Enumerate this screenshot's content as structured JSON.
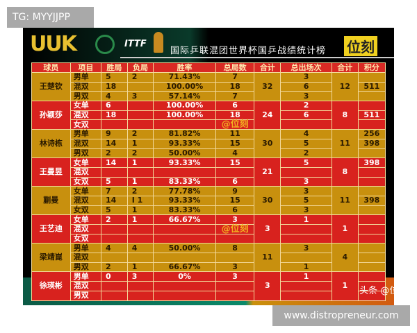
{
  "overlay_tag": "TG: MYYJJPP",
  "site": "www.distropreneur.com",
  "poster": {
    "logo": "UUK",
    "itf": "ITTF",
    "title": "国际乒联混团世界杯国乒战绩统计榜",
    "brand": "位刻",
    "watermark": "@位刻",
    "credit": "头条 @位刻"
  },
  "headers": [
    "球员",
    "项目",
    "胜局",
    "负局",
    "胜率",
    "总局数",
    "合计",
    "总出场次",
    "合计",
    "积分"
  ],
  "colors": {
    "gold": "#c8900e",
    "red": "#d8221e"
  },
  "groups": [
    {
      "name": "王楚钦",
      "total_games": "32",
      "total_apps": "12",
      "color": "gold",
      "rows": [
        [
          "男单",
          "5",
          "2",
          "71.43%",
          "7",
          "3",
          ""
        ],
        [
          "混双",
          "18",
          "",
          "100.00%",
          "18",
          "6",
          "511"
        ],
        [
          "男双",
          "4",
          "3",
          "57.14%",
          "7",
          "3",
          ""
        ]
      ]
    },
    {
      "name": "孙颖莎",
      "total_games": "24",
      "total_apps": "8",
      "color": "red",
      "rows": [
        [
          "女单",
          "6",
          "",
          "100.00%",
          "6",
          "2",
          ""
        ],
        [
          "混双",
          "18",
          "",
          "100.00%",
          "18",
          "6",
          "511"
        ],
        [
          "女双",
          "",
          "",
          "",
          "",
          "",
          ""
        ]
      ]
    },
    {
      "name": "林诗栋",
      "total_games": "30",
      "total_apps": "11",
      "color": "gold",
      "rows": [
        [
          "男单",
          "9",
          "2",
          "81.82%",
          "11",
          "4",
          "256"
        ],
        [
          "混双",
          "14",
          "1",
          "93.33%",
          "15",
          "5",
          "398"
        ],
        [
          "男双",
          "2",
          "2",
          "50.00%",
          "4",
          "2",
          ""
        ]
      ]
    },
    {
      "name": "王曼昱",
      "total_games": "21",
      "total_apps": "8",
      "color": "red",
      "rows": [
        [
          "女单",
          "14",
          "1",
          "93.33%",
          "15",
          "5",
          "398"
        ],
        [
          "混双",
          "",
          "",
          "",
          "",
          "",
          ""
        ],
        [
          "女双",
          "5",
          "1",
          "83.33%",
          "6",
          "3",
          ""
        ]
      ]
    },
    {
      "name": "蒯曼",
      "total_games": "30",
      "total_apps": "11",
      "color": "gold",
      "rows": [
        [
          "女单",
          "7",
          "2",
          "77.78%",
          "9",
          "3",
          ""
        ],
        [
          "混双",
          "14",
          "I 1",
          "93.33%",
          "15",
          "5",
          "398"
        ],
        [
          "女双",
          "5",
          "1",
          "83.33%",
          "6",
          "3",
          ""
        ]
      ]
    },
    {
      "name": "王艺迪",
      "total_games": "3",
      "total_apps": "1",
      "color": "red",
      "rows": [
        [
          "女单",
          "2",
          "1",
          "66.67%",
          "3",
          "1",
          ""
        ],
        [
          "混双",
          "",
          "",
          "",
          "",
          "",
          ""
        ],
        [
          "女双",
          "",
          "",
          "",
          "",
          "",
          ""
        ]
      ]
    },
    {
      "name": "梁靖崑",
      "total_games": "11",
      "total_apps": "4",
      "color": "gold",
      "rows": [
        [
          "男单",
          "4",
          "4",
          "50.00%",
          "8",
          "3",
          ""
        ],
        [
          "混双",
          "",
          "",
          "",
          "",
          "",
          ""
        ],
        [
          "男双",
          "2",
          "1",
          "66.67%",
          "3",
          "1",
          ""
        ]
      ]
    },
    {
      "name": "徐瑛彬",
      "total_games": "3",
      "total_apps": "1",
      "color": "red",
      "rows": [
        [
          "男单",
          "0",
          "3",
          "0%",
          "3",
          "1",
          ""
        ],
        [
          "混双",
          "",
          "",
          "",
          "",
          "",
          ""
        ],
        [
          "男双",
          "",
          "",
          "",
          "",
          "",
          ""
        ]
      ]
    }
  ]
}
